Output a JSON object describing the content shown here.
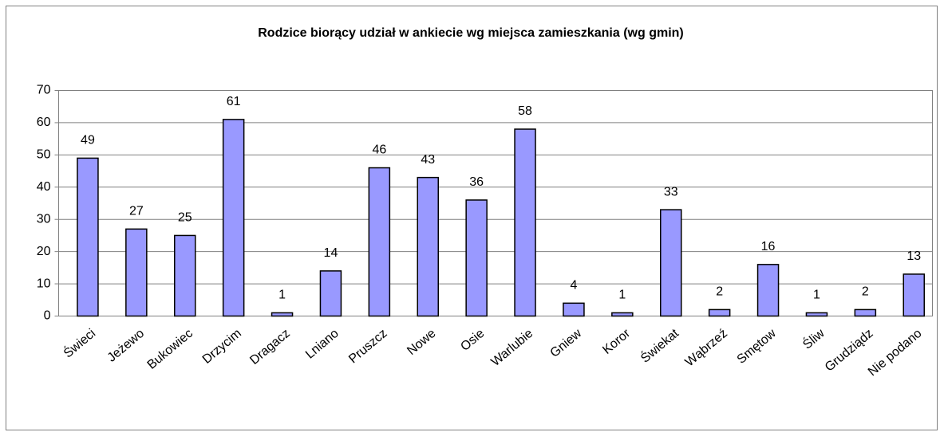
{
  "chart_data": {
    "type": "bar",
    "title": "Rodzice biorący udział w ankiecie wg miejsca zamieszkania (wg gmin)",
    "categories": [
      "Świeci",
      "Jeżewo",
      "Bukowiec",
      "Drzycim",
      "Dragacz",
      "Lniano",
      "Pruszcz",
      "Nowe",
      "Osie",
      "Warlubie",
      "Gniew",
      "Koror",
      "Świekat",
      "Wąbrzeź",
      "Smętow",
      "Śliw",
      "Grudziądz",
      "Nie podano"
    ],
    "values": [
      49,
      27,
      25,
      61,
      1,
      14,
      46,
      43,
      36,
      58,
      4,
      1,
      33,
      2,
      16,
      1,
      2,
      13
    ],
    "color": "#9999ff",
    "ylim": [
      0,
      70
    ],
    "yticks": [
      0,
      10,
      20,
      30,
      40,
      50,
      60,
      70
    ],
    "grid": true
  }
}
